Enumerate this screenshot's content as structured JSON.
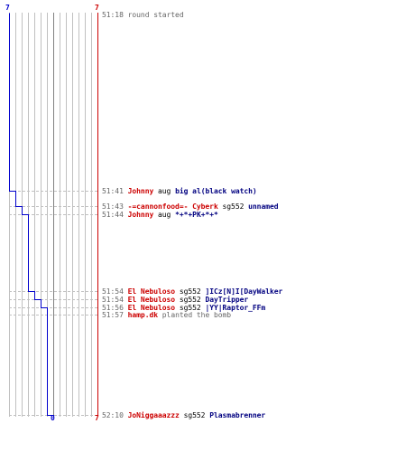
{
  "timeline": {
    "top_left_count": "7",
    "top_right_count": "7",
    "bottom_left_count": "0",
    "bottom_right_count": "7",
    "left_team_color": "#0000cc",
    "right_team_color": "#cc0000",
    "grid_color": "#c0c0c0",
    "center_line_color": "#808080",
    "event_dash_color": "#c0c0c0"
  },
  "events": [
    {
      "time": "51:18",
      "text": "round started",
      "type": "info"
    },
    {
      "time": "51:41",
      "killer": "Johnny",
      "weapon": "aug",
      "victim": "big al(black watch)",
      "type": "kill",
      "side": "left"
    },
    {
      "time": "51:43",
      "killer": "-=cannonfood=- Cyberk",
      "weapon": "sg552",
      "victim": "unnamed",
      "type": "kill",
      "side": "left"
    },
    {
      "time": "51:44",
      "killer": "Johnny",
      "weapon": "aug",
      "victim": "*+*+PK+*+*",
      "type": "kill",
      "side": "left"
    },
    {
      "time": "51:54",
      "killer": "El Nebuloso",
      "weapon": "sg552",
      "victim": "]ICz[N]I[DayWalker",
      "type": "kill",
      "side": "left"
    },
    {
      "time": "51:54",
      "killer": "El Nebuloso",
      "weapon": "sg552",
      "victim": "DayTripper",
      "type": "kill",
      "side": "left"
    },
    {
      "time": "51:56",
      "killer": "El Nebuloso",
      "weapon": "sg552",
      "victim": "|YY|Raptor_FFm",
      "type": "kill",
      "side": "left"
    },
    {
      "time": "51:57",
      "killer": "hamp.dk",
      "text": "planted the bomb",
      "type": "objective"
    },
    {
      "time": "52:10",
      "killer": "JoNiggaaazzz",
      "weapon": "sg552",
      "victim": "Plasmabrenner",
      "type": "kill",
      "side": "left"
    }
  ]
}
